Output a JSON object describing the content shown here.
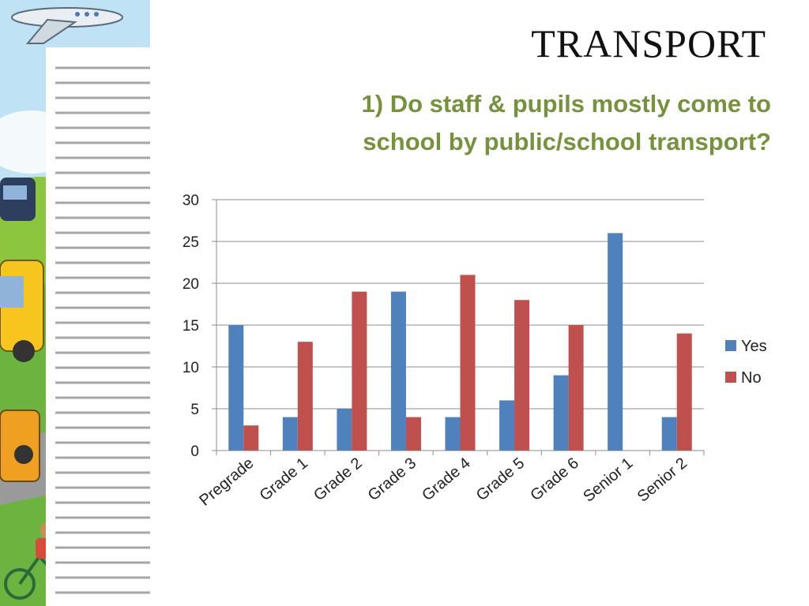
{
  "slide": {
    "title": "TRANSPORT",
    "question_line1": "1) Do staff & pupils mostly come to",
    "question_line2": "school by public/school transport?"
  },
  "colors": {
    "question_text": "#76923c",
    "yes_series": "#4f81bd",
    "no_series": "#c0504d",
    "gridline": "#8c8c8c"
  },
  "chart_data": {
    "type": "bar",
    "categories": [
      "Pregrade",
      "Grade 1",
      "Grade 2",
      "Grade 3",
      "Grade 4",
      "Grade 5",
      "Grade 6",
      "Senior 1",
      "Senior 2"
    ],
    "series": [
      {
        "name": "Yes",
        "color": "#4f81bd",
        "values": [
          15,
          4,
          5,
          19,
          4,
          6,
          9,
          26,
          4
        ]
      },
      {
        "name": "No",
        "color": "#c0504d",
        "values": [
          3,
          13,
          19,
          4,
          21,
          18,
          15,
          0,
          14
        ]
      }
    ],
    "title": "",
    "xlabel": "",
    "ylabel": "",
    "ylim": [
      0,
      30
    ],
    "yticks": [
      0,
      5,
      10,
      15,
      20,
      25,
      30
    ],
    "grid": true,
    "legend": "right"
  }
}
